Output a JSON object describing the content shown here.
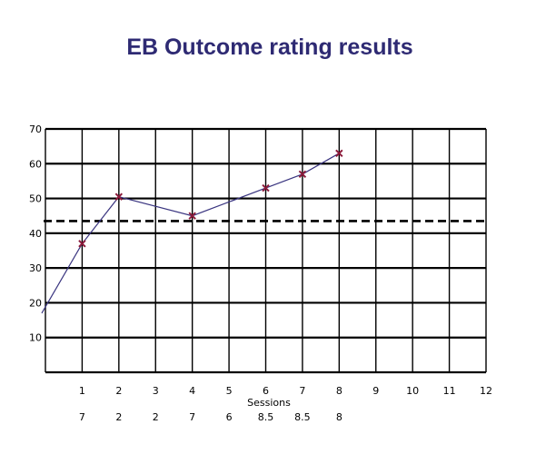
{
  "chart_data": {
    "type": "line",
    "title": "EB Outcome rating results",
    "xlabel": "Sessions",
    "ylabel": "",
    "xlim": [
      0,
      12
    ],
    "ylim": [
      0,
      70
    ],
    "x_ticks": [
      "1",
      "2",
      "3",
      "4",
      "5",
      "6",
      "7",
      "8",
      "9",
      "10",
      "11",
      "12"
    ],
    "y_ticks": [
      "10",
      "20",
      "30",
      "40",
      "50",
      "60",
      "70"
    ],
    "second_row_labels": [
      "7",
      "2",
      "2",
      "7",
      "6",
      "8.5",
      "8.5",
      "8"
    ],
    "threshold": 43.5,
    "grid": true,
    "series": [
      {
        "x": [
          -0.1,
          1,
          2,
          4,
          6,
          7,
          8
        ],
        "y": [
          17,
          37,
          50.5,
          45,
          53,
          57,
          63
        ],
        "marked": [
          false,
          true,
          true,
          true,
          true,
          true,
          true
        ]
      }
    ],
    "line_color": "#3a3580",
    "marker_color": "#8b1a3a"
  }
}
